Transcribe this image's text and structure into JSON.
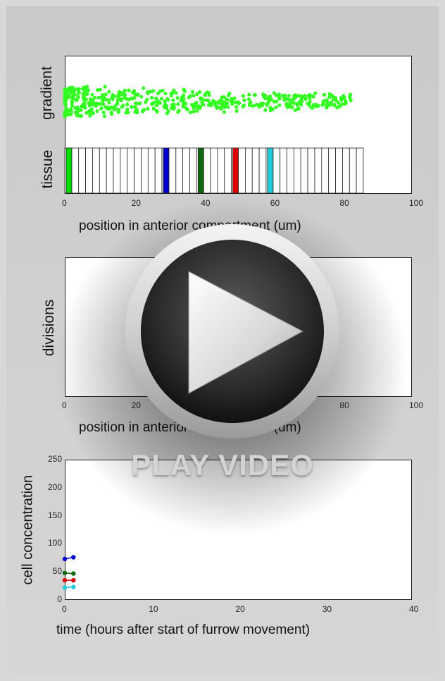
{
  "colors": {
    "gradient_points": "#33ff22",
    "cell_green": "#00dd00",
    "cell_blue": "#0000cc",
    "cell_darkgreen": "#116611",
    "cell_red": "#dd0000",
    "cell_cyan": "#22ccdd"
  },
  "panel1": {
    "ylabel_gradient": "gradient",
    "ylabel_tissue": "tissue",
    "xlabel": "position in anterior compartment (um)",
    "xticks": [
      "0",
      "20",
      "40",
      "60",
      "80",
      "100"
    ],
    "xlim": [
      0,
      100
    ],
    "tissue_extent": 86,
    "colored_cells": [
      {
        "x": 1,
        "color": "#00dd00"
      },
      {
        "x": 29,
        "color": "#0000cc"
      },
      {
        "x": 39,
        "color": "#116611"
      },
      {
        "x": 49,
        "color": "#dd0000"
      },
      {
        "x": 59,
        "color": "#22ccdd"
      }
    ]
  },
  "panel2": {
    "ylabel": "divisions",
    "xlabel": "position in anterior compartment (um)",
    "xticks": [
      "0",
      "20",
      "40",
      "60",
      "80",
      "100"
    ]
  },
  "chart_data": {
    "type": "line",
    "xlabel": "time (hours after start of furrow movement)",
    "ylabel": "cell concentration",
    "xlim": [
      0,
      40
    ],
    "ylim": [
      0,
      250
    ],
    "xticks": [
      "0",
      "10",
      "20",
      "30",
      "40"
    ],
    "yticks": [
      "0",
      "50",
      "100",
      "150",
      "200",
      "250"
    ],
    "series": [
      {
        "color": "#0000cc",
        "x": [
          0,
          1
        ],
        "y": [
          73,
          76
        ]
      },
      {
        "color": "#116611",
        "x": [
          0,
          1
        ],
        "y": [
          48,
          47
        ]
      },
      {
        "color": "#dd0000",
        "x": [
          0,
          1
        ],
        "y": [
          35,
          35
        ]
      },
      {
        "color": "#22ccdd",
        "x": [
          0,
          1
        ],
        "y": [
          22,
          23
        ]
      }
    ]
  },
  "play": {
    "label": "PLAY VIDEO"
  }
}
